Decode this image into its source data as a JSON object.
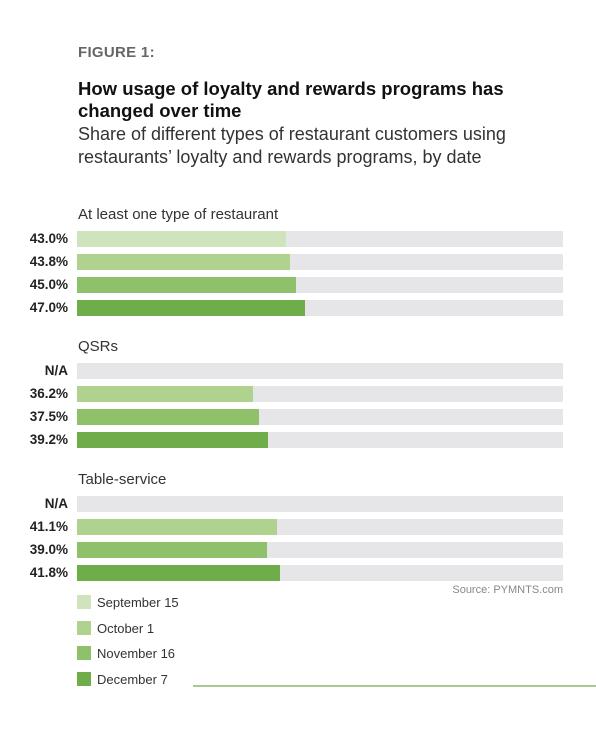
{
  "figure_label": "FIGURE 1:",
  "chart_data": {
    "type": "bar",
    "title": "How usage of loyalty and rewards programs has changed over time",
    "subtitle": "Share of different types of restaurant customers using restaurants’ loyalty and rewards programs, by date",
    "orientation": "horizontal",
    "xlim": [
      0,
      100
    ],
    "unit": "%",
    "series_colors": [
      "#cfe3bd",
      "#afd28f",
      "#8fc06a",
      "#6fac4a"
    ],
    "groups": [
      {
        "name": "At least one type of restaurant",
        "bars": [
          {
            "series": "September 15",
            "value": 43.0,
            "label": "43.0%"
          },
          {
            "series": "October 1",
            "value": 43.8,
            "label": "43.8%"
          },
          {
            "series": "November 16",
            "value": 45.0,
            "label": "45.0%"
          },
          {
            "series": "December 7",
            "value": 47.0,
            "label": "47.0%"
          }
        ]
      },
      {
        "name": "QSRs",
        "bars": [
          {
            "series": "September 15",
            "value": null,
            "label": "N/A"
          },
          {
            "series": "October 1",
            "value": 36.2,
            "label": "36.2%"
          },
          {
            "series": "November 16",
            "value": 37.5,
            "label": "37.5%"
          },
          {
            "series": "December 7",
            "value": 39.2,
            "label": "39.2%"
          }
        ]
      },
      {
        "name": "Table-service",
        "bars": [
          {
            "series": "September 15",
            "value": null,
            "label": "N/A"
          },
          {
            "series": "October 1",
            "value": 41.1,
            "label": "41.1%"
          },
          {
            "series": "November 16",
            "value": 39.0,
            "label": "39.0%"
          },
          {
            "series": "December 7",
            "value": 41.8,
            "label": "41.8%"
          }
        ]
      }
    ],
    "legend": [
      "September 15",
      "October 1",
      "November 16",
      "December 7"
    ],
    "legend_position": "bottom-left"
  },
  "source": "Source: PYMNTS.com"
}
